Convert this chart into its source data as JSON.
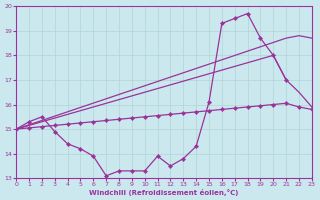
{
  "xlabel": "Windchill (Refroidissement éolien,°C)",
  "background_color": "#cce8ef",
  "grid_color": "#b0d4d4",
  "line_color": "#993399",
  "ylim": [
    13,
    20
  ],
  "xlim": [
    0,
    23
  ],
  "yticks": [
    13,
    14,
    15,
    16,
    17,
    18,
    19,
    20
  ],
  "xticks": [
    0,
    1,
    2,
    3,
    4,
    5,
    6,
    7,
    8,
    9,
    10,
    11,
    12,
    13,
    14,
    15,
    16,
    17,
    18,
    19,
    20,
    21,
    22,
    23
  ],
  "curve1_x": [
    0,
    1,
    2,
    3,
    4,
    5,
    6,
    7,
    8,
    9,
    10,
    11,
    12,
    13,
    14,
    15,
    16,
    17,
    18,
    19,
    20,
    21
  ],
  "curve1_y": [
    15.0,
    15.3,
    15.5,
    14.9,
    14.4,
    14.2,
    13.9,
    13.1,
    13.3,
    13.3,
    13.3,
    13.9,
    13.5,
    13.8,
    14.3,
    16.1,
    19.3,
    19.5,
    19.7,
    18.7,
    18.0,
    17.0
  ],
  "curve2_x": [
    0,
    21,
    22,
    23
  ],
  "curve2_y": [
    15.0,
    18.7,
    18.8,
    18.7
  ],
  "curve3_x": [
    0,
    1,
    2,
    3,
    4,
    5,
    6,
    7,
    8,
    9,
    10,
    11,
    12,
    13,
    14,
    15,
    16,
    17,
    18,
    19,
    20,
    21,
    22,
    23
  ],
  "curve3_y": [
    15.0,
    15.05,
    15.1,
    15.15,
    15.2,
    15.25,
    15.3,
    15.35,
    15.4,
    15.45,
    15.5,
    15.55,
    15.6,
    15.65,
    15.7,
    15.75,
    15.8,
    15.85,
    15.9,
    15.95,
    16.0,
    16.05,
    15.9,
    15.8
  ],
  "curve4_x": [
    0,
    20,
    21,
    22,
    23
  ],
  "curve4_y": [
    15.0,
    18.0,
    17.0,
    16.5,
    15.9
  ]
}
